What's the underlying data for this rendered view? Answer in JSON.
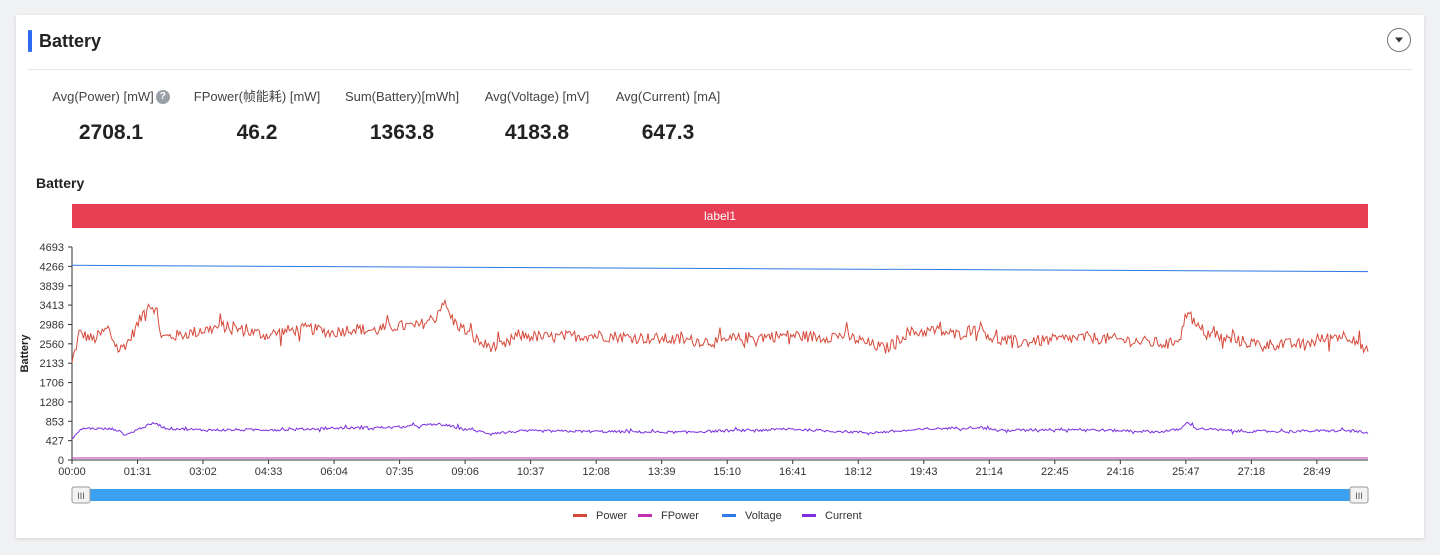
{
  "header": {
    "title": "Battery"
  },
  "metrics": [
    {
      "label": "Avg(Power) [mW]",
      "value": "2708.1"
    },
    {
      "label": "FPower(帧能耗) [mW]",
      "value": "46.2"
    },
    {
      "label": "Sum(Battery)[mWh]",
      "value": "1363.8"
    },
    {
      "label": "Avg(Voltage) [mV]",
      "value": "4183.8"
    },
    {
      "label": "Avg(Current) [mA]",
      "value": "647.3"
    }
  ],
  "section_title": "Battery",
  "chart_data": {
    "type": "line",
    "title": "Battery",
    "ylabel": "Battery",
    "xlabel": "",
    "ylim": [
      0,
      4693
    ],
    "y_ticks": [
      0,
      427,
      853,
      1280,
      1706,
      2133,
      2560,
      2986,
      3413,
      3839,
      4266,
      4693
    ],
    "x_ticks": [
      "00:00",
      "01:31",
      "03:02",
      "04:33",
      "06:04",
      "07:35",
      "09:06",
      "10:37",
      "12:08",
      "13:39",
      "15:10",
      "16:41",
      "18:12",
      "19:43",
      "21:14",
      "22:45",
      "24:16",
      "25:47",
      "27:18",
      "28:49"
    ],
    "x_range": [
      "00:00",
      "30:00"
    ],
    "mark_area": {
      "label": "label1",
      "color": "#e63e52"
    },
    "legend_position": "bottom-center",
    "series": [
      {
        "name": "Power",
        "color": "#d64a3b",
        "keypoints": [
          [
            "00:00",
            2100
          ],
          [
            "00:10",
            2800
          ],
          [
            "00:30",
            2650
          ],
          [
            "00:50",
            2900
          ],
          [
            "01:05",
            2400
          ],
          [
            "01:20",
            2650
          ],
          [
            "01:35",
            3100
          ],
          [
            "01:45",
            3450
          ],
          [
            "01:55",
            3350
          ],
          [
            "02:05",
            2700
          ],
          [
            "02:30",
            2750
          ],
          [
            "03:00",
            2850
          ],
          [
            "03:30",
            2950
          ],
          [
            "04:00",
            2850
          ],
          [
            "04:30",
            2750
          ],
          [
            "05:00",
            2850
          ],
          [
            "05:30",
            2900
          ],
          [
            "06:00",
            2800
          ],
          [
            "06:30",
            2900
          ],
          [
            "07:00",
            2850
          ],
          [
            "07:30",
            2950
          ],
          [
            "08:00",
            2950
          ],
          [
            "08:25",
            3150
          ],
          [
            "08:35",
            3500
          ],
          [
            "08:50",
            3050
          ],
          [
            "09:10",
            2800
          ],
          [
            "09:30",
            2550
          ],
          [
            "09:45",
            2500
          ],
          [
            "10:00",
            2500
          ],
          [
            "10:20",
            2750
          ],
          [
            "11:00",
            2700
          ],
          [
            "12:00",
            2750
          ],
          [
            "13:00",
            2700
          ],
          [
            "14:00",
            2650
          ],
          [
            "15:00",
            2600
          ],
          [
            "15:40",
            2700
          ],
          [
            "16:40",
            2750
          ],
          [
            "17:20",
            2700
          ],
          [
            "17:50",
            2750
          ],
          [
            "18:20",
            2600
          ],
          [
            "18:50",
            2450
          ],
          [
            "19:20",
            2800
          ],
          [
            "20:00",
            2850
          ],
          [
            "20:30",
            2750
          ],
          [
            "21:00",
            2950
          ],
          [
            "21:20",
            2650
          ],
          [
            "22:00",
            2600
          ],
          [
            "22:45",
            2650
          ],
          [
            "23:30",
            2700
          ],
          [
            "24:15",
            2650
          ],
          [
            "24:50",
            2600
          ],
          [
            "25:25",
            2550
          ],
          [
            "25:40",
            2750
          ],
          [
            "25:50",
            3350
          ],
          [
            "26:00",
            2950
          ],
          [
            "26:30",
            2700
          ],
          [
            "27:30",
            2550
          ],
          [
            "28:30",
            2550
          ],
          [
            "29:20",
            2750
          ],
          [
            "29:40",
            2700
          ],
          [
            "30:00",
            2350
          ]
        ]
      },
      {
        "name": "FPower",
        "color": "#c22fb3",
        "keypoints": [
          [
            "00:00",
            45
          ],
          [
            "30:00",
            45
          ]
        ]
      },
      {
        "name": "Voltage",
        "color": "#2f7ae6",
        "keypoints": [
          [
            "00:00",
            4290
          ],
          [
            "30:00",
            4150
          ]
        ]
      },
      {
        "name": "Current",
        "color": "#7b2fe0",
        "keypoints": [
          [
            "00:00",
            480
          ],
          [
            "00:15",
            700
          ],
          [
            "01:00",
            680
          ],
          [
            "01:15",
            550
          ],
          [
            "01:35",
            700
          ],
          [
            "01:55",
            820
          ],
          [
            "02:10",
            700
          ],
          [
            "03:00",
            660
          ],
          [
            "05:00",
            670
          ],
          [
            "06:00",
            700
          ],
          [
            "07:30",
            720
          ],
          [
            "08:30",
            790
          ],
          [
            "09:00",
            700
          ],
          [
            "09:40",
            590
          ],
          [
            "10:30",
            640
          ],
          [
            "12:00",
            630
          ],
          [
            "14:00",
            610
          ],
          [
            "15:00",
            640
          ],
          [
            "16:40",
            680
          ],
          [
            "17:30",
            640
          ],
          [
            "18:30",
            600
          ],
          [
            "20:00",
            690
          ],
          [
            "21:00",
            720
          ],
          [
            "21:30",
            650
          ],
          [
            "23:00",
            680
          ],
          [
            "24:30",
            640
          ],
          [
            "25:10",
            620
          ],
          [
            "25:40",
            680
          ],
          [
            "25:50",
            840
          ],
          [
            "26:00",
            700
          ],
          [
            "27:00",
            630
          ],
          [
            "28:00",
            630
          ],
          [
            "29:40",
            650
          ],
          [
            "30:00",
            580
          ]
        ]
      }
    ]
  },
  "zoom_slider": {
    "start": 0,
    "end": 1,
    "handle_glyph": "III"
  }
}
